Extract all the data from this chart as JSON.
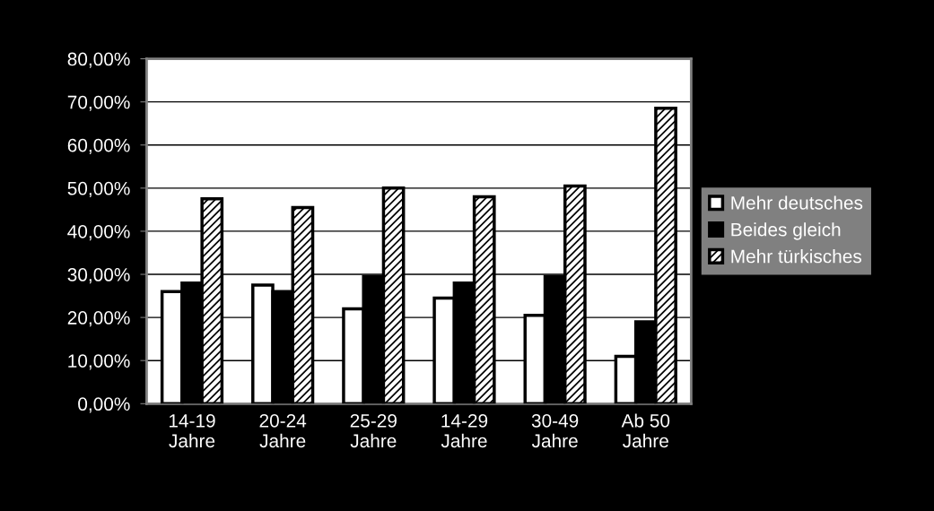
{
  "chart_data": {
    "type": "bar",
    "categories": [
      "14-19\nJahre",
      "20-24\nJahre",
      "25-29\nJahre",
      "14-29\nJahre",
      "30-49\nJahre",
      "Ab 50\nJahre"
    ],
    "series": [
      {
        "name": "Mehr deutsches",
        "color": "#ffffff",
        "values": [
          26,
          27.5,
          22,
          24.5,
          20.5,
          11
        ]
      },
      {
        "name": "Beides gleich",
        "color": "#000000",
        "values": [
          28,
          26,
          29.5,
          28,
          29.5,
          19
        ]
      },
      {
        "name": "Mehr türkisches",
        "color": "#000000",
        "values": [
          47.5,
          45.5,
          50,
          48,
          50.5,
          68.5
        ]
      }
    ],
    "ylim": [
      0,
      80
    ],
    "yticks": [
      {
        "value": 0,
        "label": "0,00%"
      },
      {
        "value": 10,
        "label": "10,00%"
      },
      {
        "value": 20,
        "label": "20,00%"
      },
      {
        "value": 30,
        "label": "30,00%"
      },
      {
        "value": 40,
        "label": "40,00%"
      },
      {
        "value": 50,
        "label": "50,00%"
      },
      {
        "value": 60,
        "label": "60,00%"
      },
      {
        "value": 70,
        "label": "70,00%"
      },
      {
        "value": 80,
        "label": "80,00%"
      }
    ],
    "grid": "y",
    "legend": "right"
  }
}
